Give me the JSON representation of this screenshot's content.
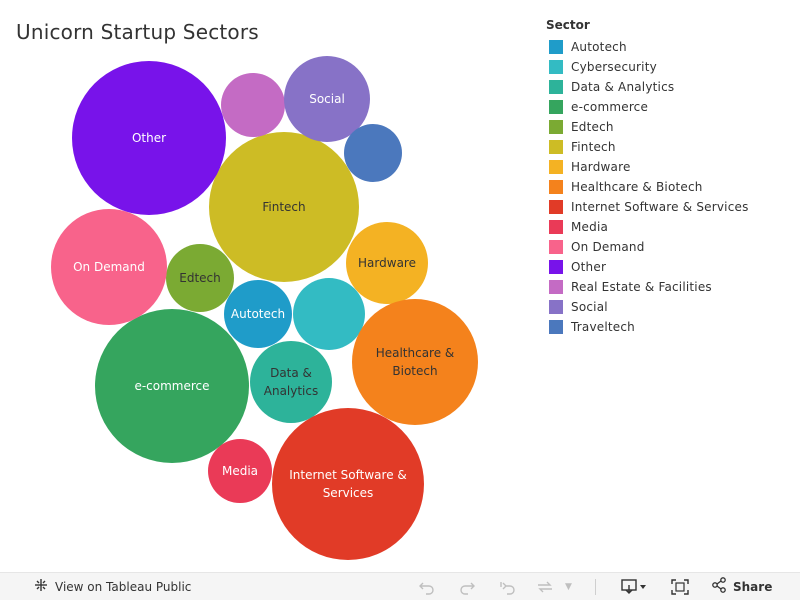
{
  "chart_data": {
    "type": "packed-bubble",
    "title": "Unicorn Startup Sectors",
    "legend_title": "Sector",
    "legend_position": "right",
    "sectors": [
      {
        "name": "Autotech",
        "color": "#1F9CC9",
        "label": "Autotech"
      },
      {
        "name": "Cybersecurity",
        "color": "#33BBC3",
        "label": ""
      },
      {
        "name": "Data & Analytics",
        "color": "#2DB39A",
        "label": "Data &\nAnalytics"
      },
      {
        "name": "e-commerce",
        "color": "#35A55E",
        "label": "e-commerce"
      },
      {
        "name": "Edtech",
        "color": "#7BAA33",
        "label": "Edtech"
      },
      {
        "name": "Fintech",
        "color": "#CDBC25",
        "label": "Fintech"
      },
      {
        "name": "Hardware",
        "color": "#F4B223",
        "label": "Hardware"
      },
      {
        "name": "Healthcare & Biotech",
        "color": "#F4821C",
        "label": "Healthcare &\nBiotech"
      },
      {
        "name": "Internet Software & Services",
        "color": "#E13B27",
        "label": "Internet Software &\nServices"
      },
      {
        "name": "Media",
        "color": "#EA3A57",
        "label": "Media"
      },
      {
        "name": "On Demand",
        "color": "#F8638B",
        "label": "On Demand"
      },
      {
        "name": "Other",
        "color": "#7813EA",
        "label": "Other"
      },
      {
        "name": "Real Estate & Facilities",
        "color": "#C46BC4",
        "label": ""
      },
      {
        "name": "Social",
        "color": "#8772C7",
        "label": "Social"
      },
      {
        "name": "Traveltech",
        "color": "#4B78BD",
        "label": ""
      }
    ]
  },
  "toolbar": {
    "view_label": "View on Tableau Public",
    "share_label": "Share"
  }
}
